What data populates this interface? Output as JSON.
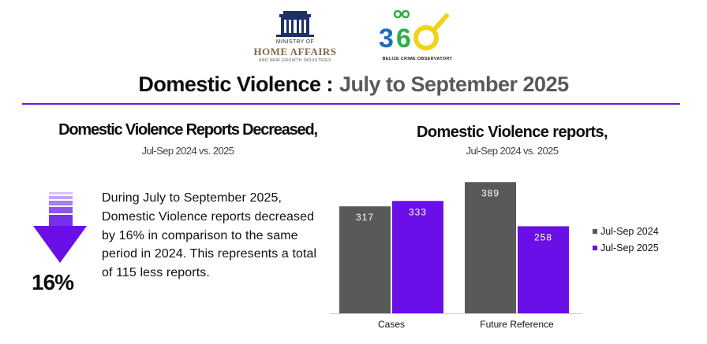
{
  "logos": {
    "ministry_line1": "MINISTRY OF",
    "ministry_line2": "HOME AFFAIRS",
    "ministry_line3": "AND NEW GROWTH INDUSTRIES",
    "bco_text": "BELIZE CRIME OBSERVATORY"
  },
  "title": {
    "part1": "Domestic Violence :",
    "part2": "July to September 2025"
  },
  "left": {
    "heading": "Domestic Violence Reports Decreased,",
    "subheading": "Jul-Sep 2024 vs. 2025",
    "percent": "16%",
    "paragraph": "During July to September 2025, Domestic Violence reports decreased by 16% in comparison to the same period in 2024. This represents a total of 115 less reports."
  },
  "right": {
    "heading": "Domestic Violence reports,",
    "subheading": "Jul-Sep 2024 vs. 2025"
  },
  "colors": {
    "accent": "#6a1be0",
    "series_2024": "#595959",
    "series_2025": "#6a0fe8"
  },
  "chart_data": {
    "type": "bar",
    "categories": [
      "Cases",
      "Future Reference"
    ],
    "series": [
      {
        "name": "Jul-Sep 2024",
        "values": [
          317,
          389
        ]
      },
      {
        "name": "Jul-Sep 2025",
        "values": [
          333,
          258
        ]
      }
    ],
    "data_labels": true,
    "legend_position": "right",
    "ylim": [
      0,
      420
    ],
    "grid": false
  }
}
